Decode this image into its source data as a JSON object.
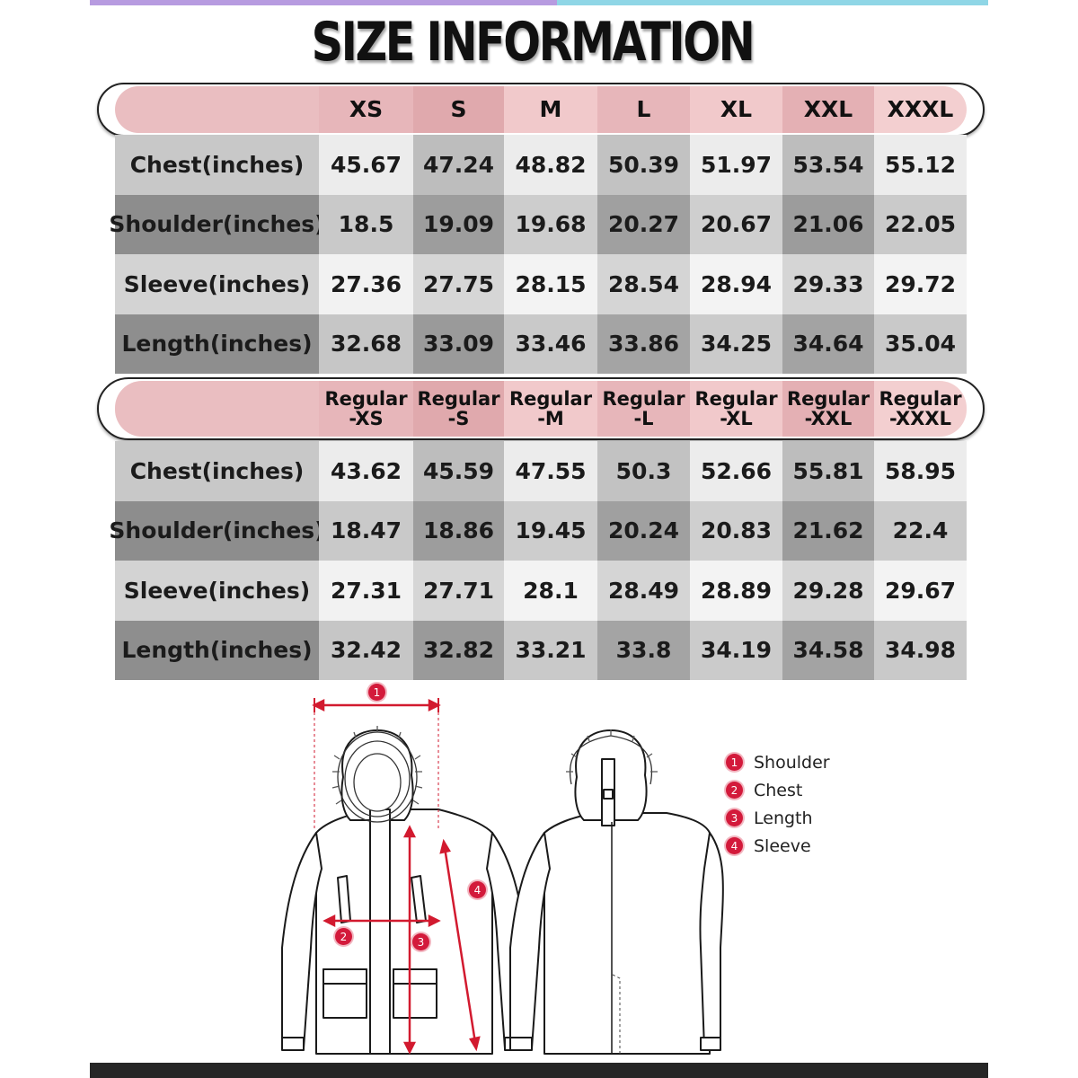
{
  "title": "SIZE INFORMATION",
  "colors": {
    "header_pink": "#e4b2b6",
    "header_pink_light": "#f0c6c8",
    "measure_red": "#d21a2f"
  },
  "table1": {
    "headers": [
      "XS",
      "S",
      "M",
      "L",
      "XL",
      "XXL",
      "XXXL"
    ],
    "rows": [
      {
        "label": "Chest(inches)",
        "values": [
          "45.67",
          "47.24",
          "48.82",
          "50.39",
          "51.97",
          "53.54",
          "55.12"
        ]
      },
      {
        "label": "Shoulder(inches)",
        "values": [
          "18.5",
          "19.09",
          "19.68",
          "20.27",
          "20.67",
          "21.06",
          "22.05"
        ]
      },
      {
        "label": "Sleeve(inches)",
        "values": [
          "27.36",
          "27.75",
          "28.15",
          "28.54",
          "28.94",
          "29.33",
          "29.72"
        ]
      },
      {
        "label": "Length(inches)",
        "values": [
          "32.68",
          "33.09",
          "33.46",
          "33.86",
          "34.25",
          "34.64",
          "35.04"
        ]
      }
    ]
  },
  "table2": {
    "headers": [
      {
        "line1": "Regular",
        "line2": "-XS"
      },
      {
        "line1": "Regular",
        "line2": "-S"
      },
      {
        "line1": "Regular",
        "line2": "-M"
      },
      {
        "line1": "Regular",
        "line2": "-L"
      },
      {
        "line1": "Regular",
        "line2": "-XL"
      },
      {
        "line1": "Regular",
        "line2": "-XXL"
      },
      {
        "line1": "Regular",
        "line2": "-XXXL"
      }
    ],
    "rows": [
      {
        "label": "Chest(inches)",
        "values": [
          "43.62",
          "45.59",
          "47.55",
          "50.3",
          "52.66",
          "55.81",
          "58.95"
        ]
      },
      {
        "label": "Shoulder(inches)",
        "values": [
          "18.47",
          "18.86",
          "19.45",
          "20.24",
          "20.83",
          "21.62",
          "22.4"
        ]
      },
      {
        "label": "Sleeve(inches)",
        "values": [
          "27.31",
          "27.71",
          "28.1",
          "28.49",
          "28.89",
          "29.28",
          "29.67"
        ]
      },
      {
        "label": "Length(inches)",
        "values": [
          "32.42",
          "32.82",
          "33.21",
          "33.8",
          "34.19",
          "34.58",
          "34.98"
        ]
      }
    ]
  },
  "legend": [
    {
      "num": "1",
      "label": "Shoulder"
    },
    {
      "num": "2",
      "label": "Chest"
    },
    {
      "num": "3",
      "label": "Length"
    },
    {
      "num": "4",
      "label": "Sleeve"
    }
  ],
  "diagram_markers": [
    "1",
    "2",
    "3",
    "4"
  ]
}
